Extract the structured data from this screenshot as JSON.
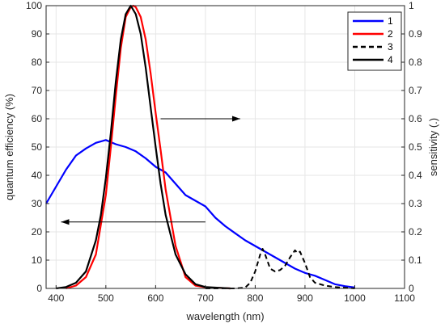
{
  "chart_data": {
    "type": "line",
    "xlabel": "wavelength (nm)",
    "ylabel_left": "quantum efficiency (%)",
    "ylabel_right": "sensitivity (.)",
    "xlim": [
      380,
      1100
    ],
    "ylim_left": [
      0,
      100
    ],
    "ylim_right": [
      0,
      1
    ],
    "xticks": [
      400,
      500,
      600,
      700,
      800,
      900,
      1000,
      1100
    ],
    "yticks_left": [
      0,
      10,
      20,
      30,
      40,
      50,
      60,
      70,
      80,
      90,
      100
    ],
    "yticks_right": [
      0,
      0.1,
      0.2,
      0.3,
      0.4,
      0.5,
      0.6,
      0.7,
      0.8,
      0.9,
      1
    ],
    "grid": true,
    "legend_position": "top-right",
    "series": [
      {
        "name": "1",
        "color": "#0000ff",
        "style": "solid",
        "axis": "left",
        "x": [
          380,
          400,
          420,
          440,
          460,
          480,
          500,
          520,
          540,
          560,
          580,
          600,
          620,
          640,
          660,
          680,
          700,
          720,
          740,
          760,
          780,
          800,
          820,
          840,
          860,
          880,
          900,
          920,
          940,
          960,
          980,
          1000
        ],
        "y": [
          30,
          36,
          42,
          47,
          49.5,
          51.5,
          52.5,
          51,
          50,
          48.5,
          46,
          43,
          41,
          37,
          33,
          31,
          29,
          25,
          22,
          19.5,
          17,
          15,
          13,
          11,
          9,
          7,
          5.5,
          4.5,
          3,
          1.5,
          0.8,
          0.3
        ]
      },
      {
        "name": "2",
        "color": "#ff0000",
        "style": "solid",
        "axis": "right",
        "x": [
          420,
          440,
          460,
          480,
          500,
          510,
          520,
          530,
          540,
          550,
          555,
          560,
          570,
          580,
          590,
          600,
          610,
          620,
          640,
          660,
          680,
          700,
          750
        ],
        "y": [
          0,
          0.01,
          0.04,
          0.12,
          0.33,
          0.5,
          0.68,
          0.85,
          0.96,
          0.995,
          1.0,
          0.995,
          0.96,
          0.88,
          0.76,
          0.62,
          0.49,
          0.35,
          0.15,
          0.04,
          0.01,
          0.004,
          0
        ]
      },
      {
        "name": "3",
        "color": "#000000",
        "style": "dashed",
        "axis": "right",
        "x": [
          700,
          760,
          780,
          790,
          800,
          810,
          815,
          820,
          830,
          840,
          850,
          860,
          870,
          880,
          885,
          890,
          900,
          910,
          920,
          940,
          960,
          1000
        ],
        "y": [
          0,
          0,
          0.003,
          0.02,
          0.06,
          0.12,
          0.14,
          0.12,
          0.07,
          0.06,
          0.065,
          0.08,
          0.11,
          0.135,
          0.125,
          0.13,
          0.09,
          0.04,
          0.02,
          0.01,
          0.005,
          0
        ]
      },
      {
        "name": "4",
        "color": "#000000",
        "style": "solid",
        "axis": "right",
        "x": [
          400,
          420,
          440,
          460,
          480,
          490,
          500,
          510,
          520,
          530,
          540,
          550,
          560,
          570,
          580,
          590,
          600,
          610,
          620,
          640,
          660,
          680,
          700,
          750
        ],
        "y": [
          0,
          0.005,
          0.02,
          0.06,
          0.17,
          0.26,
          0.39,
          0.55,
          0.73,
          0.88,
          0.97,
          1.0,
          0.97,
          0.9,
          0.78,
          0.64,
          0.5,
          0.37,
          0.26,
          0.12,
          0.05,
          0.015,
          0.005,
          0
        ]
      }
    ],
    "annotations": [
      {
        "type": "arrow",
        "from": [
          610,
          60
        ],
        "to": [
          770,
          60
        ],
        "axis": "left"
      },
      {
        "type": "arrow",
        "from": [
          700,
          23.5
        ],
        "to": [
          410,
          23.5
        ],
        "axis": "left"
      }
    ]
  }
}
